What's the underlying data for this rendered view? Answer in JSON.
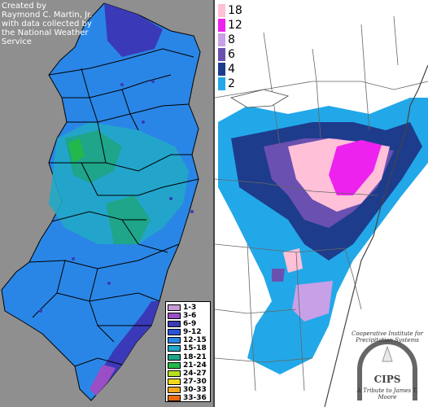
{
  "credit": {
    "line1": "Created by",
    "line2": "Raymond C. Martin, Jr.",
    "line3": "with data collected by",
    "line4": "the National Weather",
    "line5": "Service"
  },
  "nj_legend": [
    {
      "label": "1-3",
      "color": "#c89ad6"
    },
    {
      "label": "3-6",
      "color": "#9a4ec6"
    },
    {
      "label": "6-9",
      "color": "#3a3ab8"
    },
    {
      "label": "9-12",
      "color": "#2a52d6"
    },
    {
      "label": "12-15",
      "color": "#2a86e6"
    },
    {
      "label": "15-18",
      "color": "#22a8c8"
    },
    {
      "label": "18-21",
      "color": "#1ea58a"
    },
    {
      "label": "21-24",
      "color": "#22b84a"
    },
    {
      "label": "24-27",
      "color": "#b8e020"
    },
    {
      "label": "27-30",
      "color": "#f2d81e"
    },
    {
      "label": "30-33",
      "color": "#f2a81e"
    },
    {
      "label": "33-36",
      "color": "#e86a10"
    }
  ],
  "us_legend": [
    {
      "label": "18",
      "color": "#ffc0d8"
    },
    {
      "label": "12",
      "color": "#ee22ee"
    },
    {
      "label": "8",
      "color": "#c8a0e8"
    },
    {
      "label": "6",
      "color": "#6a50b0"
    },
    {
      "label": "4",
      "color": "#1e3c8c"
    },
    {
      "label": "2",
      "color": "#22a8e8"
    }
  ],
  "logo": {
    "name": "CIPS",
    "top_text": "Cooperative Institute for Precipitation Systems",
    "sub_text": "A Tribute to James T. Moore"
  },
  "colors": {
    "nj_background": "#8f8f8f",
    "nj_main_fill": "#2a86e6",
    "nj_teal": "#22a8c8",
    "nj_green": "#1ea58a",
    "nj_dark": "#3a3ab8"
  }
}
